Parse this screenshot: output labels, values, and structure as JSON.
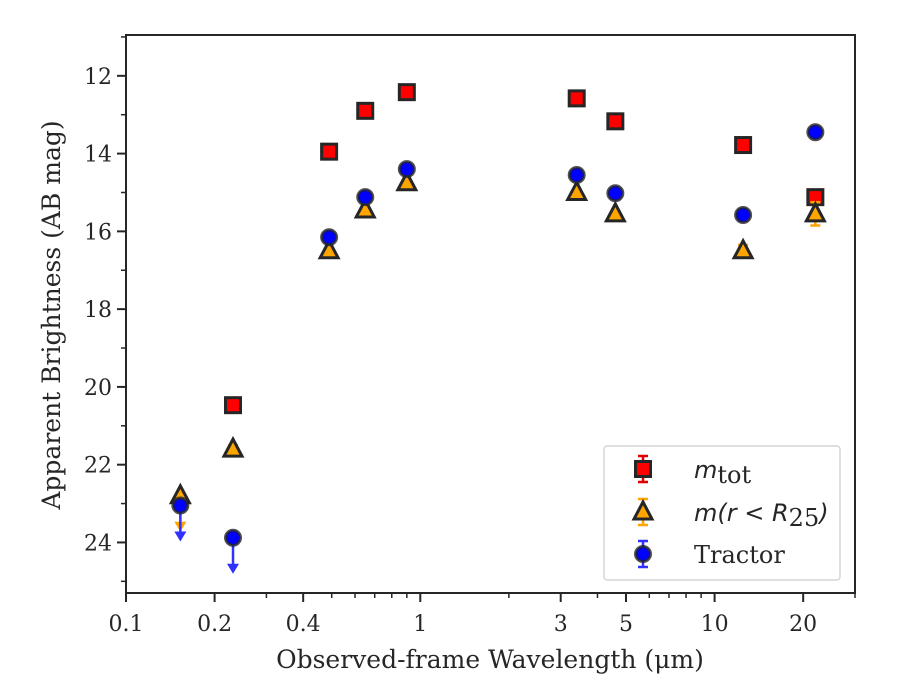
{
  "chart_data": {
    "type": "scatter",
    "xlabel": "Observed-frame Wavelength (μm)",
    "ylabel": "Apparent Brightness (AB mag)",
    "xscale": "log",
    "xlim": [
      0.1,
      30
    ],
    "ylim": [
      25.3,
      10.95
    ],
    "y_inverted": true,
    "grid": false,
    "legend_position": "lower-right",
    "x_tick_labels": [
      "0.1",
      "0.2",
      "0.4",
      "1",
      "3",
      "5",
      "10",
      "20"
    ],
    "x_ticks": [
      0.1,
      0.2,
      0.4,
      1,
      3,
      5,
      10,
      20
    ],
    "y_ticks": [
      12,
      14,
      16,
      18,
      20,
      22,
      24
    ],
    "y_tick_labels": [
      "12",
      "14",
      "16",
      "18",
      "20",
      "22",
      "24"
    ],
    "series": [
      {
        "name": "m_tot",
        "legend_main": "m",
        "legend_sub": "tot",
        "marker": "square",
        "fill": "#ff0000",
        "edge": "#262626",
        "errcolor": "#e00000",
        "points": [
          {
            "x": 0.231,
            "y": 20.47,
            "err": 0.08
          },
          {
            "x": 0.49,
            "y": 13.95,
            "err": 0
          },
          {
            "x": 0.65,
            "y": 12.9,
            "err": 0
          },
          {
            "x": 0.9,
            "y": 12.42,
            "err": 0
          },
          {
            "x": 3.4,
            "y": 12.58,
            "err": 0
          },
          {
            "x": 4.6,
            "y": 13.17,
            "err": 0
          },
          {
            "x": 12.5,
            "y": 13.78,
            "err": 0
          },
          {
            "x": 22.0,
            "y": 15.12,
            "err": 0.05
          }
        ]
      },
      {
        "name": "m(r<R25)",
        "legend_main": "m",
        "legend_paren": "(r < R",
        "legend_sub": "25",
        "legend_close": ")",
        "marker": "triangle",
        "fill": "#ffa500",
        "edge": "#262626",
        "errcolor": "#ffa500",
        "points": [
          {
            "x": 0.153,
            "y": 22.8,
            "err": 0,
            "upper_limit": true
          },
          {
            "x": 0.231,
            "y": 21.6,
            "err": 0.1
          },
          {
            "x": 0.49,
            "y": 16.5,
            "err": 0
          },
          {
            "x": 0.65,
            "y": 15.45,
            "err": 0
          },
          {
            "x": 0.9,
            "y": 14.75,
            "err": 0
          },
          {
            "x": 3.4,
            "y": 15.0,
            "err": 0
          },
          {
            "x": 4.6,
            "y": 15.55,
            "err": 0
          },
          {
            "x": 12.5,
            "y": 16.5,
            "err": 0.15
          },
          {
            "x": 22.0,
            "y": 15.55,
            "err": 0.3
          }
        ]
      },
      {
        "name": "Tractor",
        "legend_main": "Tractor",
        "marker": "circle",
        "fill": "#0000ff",
        "edge": "#262626",
        "errcolor": "#3030ff",
        "points": [
          {
            "x": 0.153,
            "y": 23.05,
            "err": 0,
            "upper_limit": true
          },
          {
            "x": 0.231,
            "y": 23.88,
            "err": 0,
            "upper_limit": true
          },
          {
            "x": 0.49,
            "y": 16.15,
            "err": 0
          },
          {
            "x": 0.65,
            "y": 15.12,
            "err": 0
          },
          {
            "x": 0.9,
            "y": 14.4,
            "err": 0
          },
          {
            "x": 3.4,
            "y": 14.55,
            "err": 0
          },
          {
            "x": 4.6,
            "y": 15.02,
            "err": 0
          },
          {
            "x": 12.5,
            "y": 15.58,
            "err": 0
          },
          {
            "x": 22.0,
            "y": 13.45,
            "err": 0
          }
        ]
      }
    ]
  }
}
